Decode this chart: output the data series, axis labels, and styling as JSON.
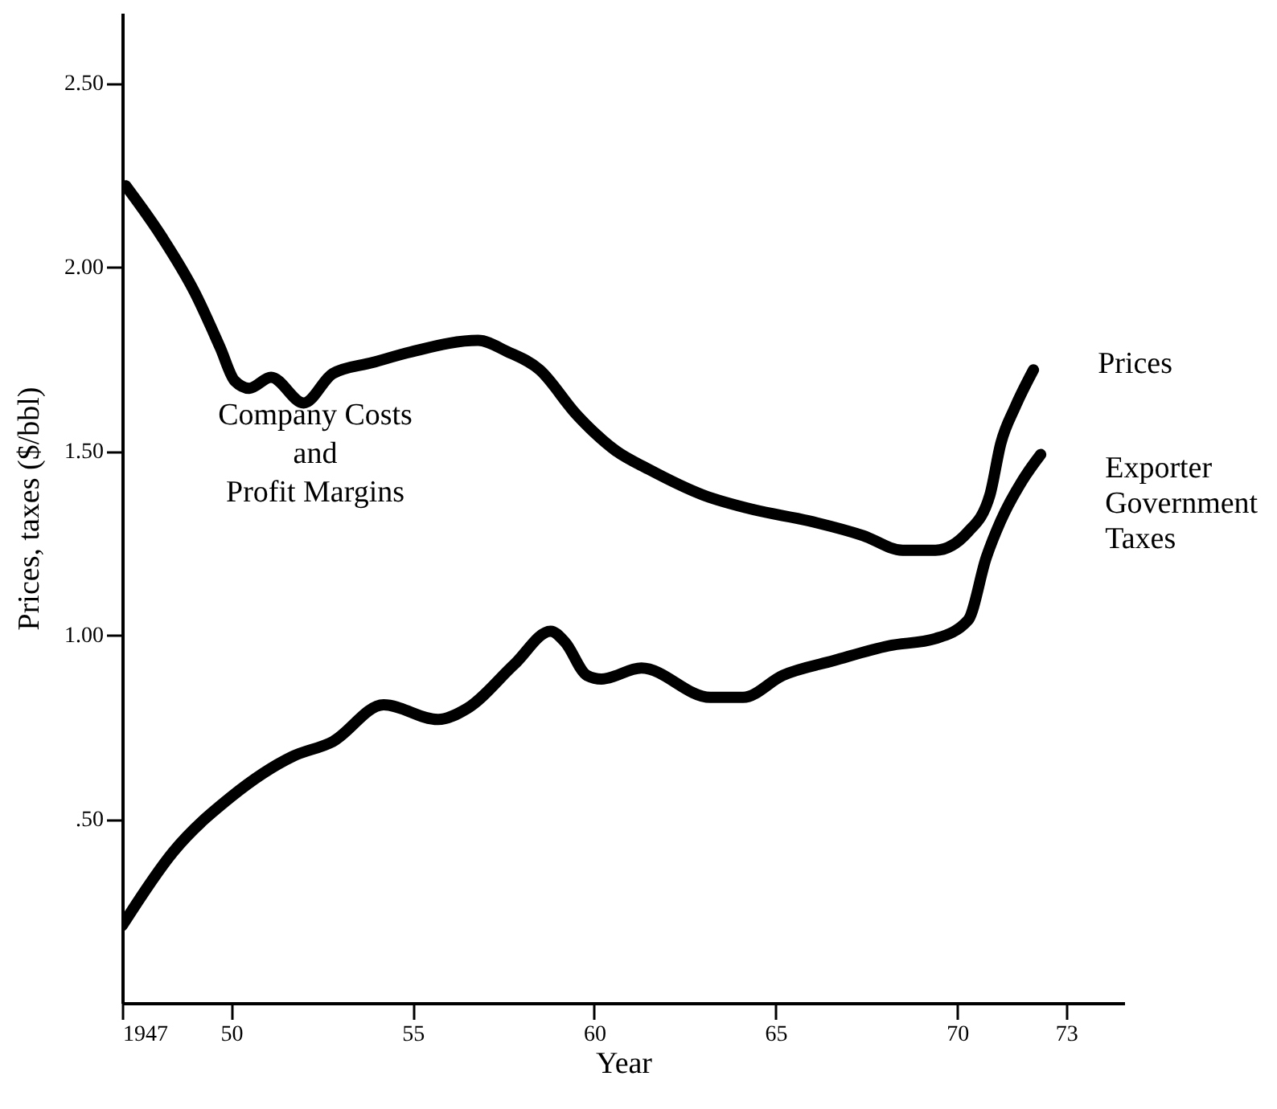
{
  "chart_data": {
    "type": "line",
    "xlabel": "Year",
    "ylabel": "Prices, taxes ($/bbl)",
    "xlim": [
      1947,
      1974.6
    ],
    "ylim": [
      0,
      2.69
    ],
    "xticks": [
      {
        "value": 1947,
        "label": "1947"
      },
      {
        "value": 1950,
        "label": "50"
      },
      {
        "value": 1955,
        "label": "55"
      },
      {
        "value": 1960,
        "label": "60"
      },
      {
        "value": 1965,
        "label": "65"
      },
      {
        "value": 1970,
        "label": "70"
      },
      {
        "value": 1973,
        "label": "73"
      }
    ],
    "yticks": [
      {
        "value": 0.5,
        "label": ".50"
      },
      {
        "value": 1,
        "label": "1.00"
      },
      {
        "value": 1.5,
        "label": "1.50"
      },
      {
        "value": 2,
        "label": "2.00"
      },
      {
        "value": 2.5,
        "label": "2.50"
      }
    ],
    "grid": false,
    "marker": "none",
    "line_style": "solid",
    "annotations": [
      "Company Costs\nand\nProfit Margins"
    ],
    "series": [
      {
        "name": "Prices",
        "color": "#000000",
        "x": [
          1947.1,
          1948.1,
          1949.0,
          1949.7,
          1950.1,
          1950.5,
          1951.1,
          1952.0,
          1952.8,
          1953.9,
          1955.0,
          1956.8,
          1957.6,
          1958.5,
          1959.5,
          1960.0,
          1960.6,
          1961.5,
          1963.0,
          1964.4,
          1965.9,
          1967.4,
          1968.5,
          1969.4,
          1970.3,
          1970.9,
          1971.2,
          1971.6,
          1972.1
        ],
        "values": [
          2.22,
          2.08,
          1.93,
          1.78,
          1.69,
          1.67,
          1.7,
          1.63,
          1.71,
          1.74,
          1.77,
          1.8,
          1.77,
          1.72,
          1.6,
          1.55,
          1.5,
          1.45,
          1.38,
          1.34,
          1.31,
          1.27,
          1.23,
          1.23,
          1.28,
          1.38,
          1.52,
          1.62,
          1.72
        ]
      },
      {
        "name": "Exporter Government Taxes",
        "color": "#000000",
        "x": [
          1947.0,
          1948.4,
          1950.0,
          1951.7,
          1952.8,
          1954.2,
          1955.7,
          1956.5,
          1957.8,
          1958.8,
          1959.2,
          1959.8,
          1960.2,
          1961.3,
          1963.2,
          1964.1,
          1965.2,
          1966.6,
          1968.1,
          1969.4,
          1970.3,
          1970.8,
          1971.2,
          1971.8,
          1972.3
        ],
        "values": [
          0.21,
          0.41,
          0.56,
          0.67,
          0.71,
          0.81,
          0.77,
          0.8,
          0.92,
          1.01,
          0.98,
          0.89,
          0.88,
          0.91,
          0.83,
          0.83,
          0.89,
          0.93,
          0.97,
          0.99,
          1.04,
          1.21,
          1.31,
          1.42,
          1.49
        ]
      }
    ]
  }
}
